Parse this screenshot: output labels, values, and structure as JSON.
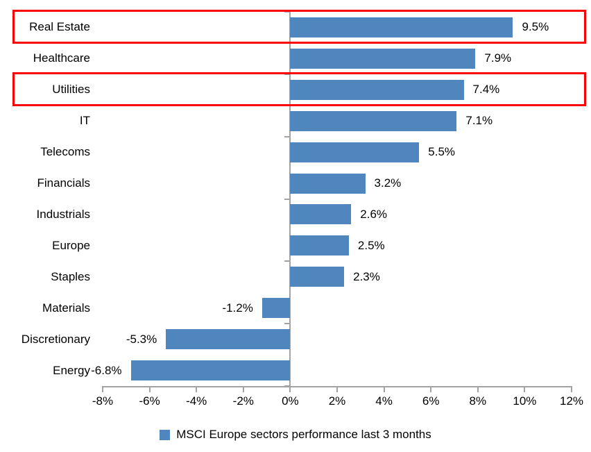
{
  "chart_data": {
    "type": "bar",
    "orientation": "horizontal",
    "title": "",
    "categories": [
      "Real Estate",
      "Healthcare",
      "Utilities",
      "IT",
      "Telecoms",
      "Financials",
      "Industrials",
      "Europe",
      "Staples",
      "Materials",
      "Discretionary",
      "Energy"
    ],
    "values": [
      9.5,
      7.9,
      7.4,
      7.1,
      5.5,
      3.2,
      2.6,
      2.5,
      2.3,
      -1.2,
      -5.3,
      -6.8
    ],
    "value_labels": [
      "9.5%",
      "7.9%",
      "7.4%",
      "7.1%",
      "5.5%",
      "3.2%",
      "2.6%",
      "2.5%",
      "2.3%",
      "-1.2%",
      "-5.3%",
      "-6.8%"
    ],
    "xlim": [
      -8,
      12
    ],
    "xticks": [
      -8,
      -6,
      -4,
      -2,
      0,
      2,
      4,
      6,
      8,
      10,
      12
    ],
    "xtick_labels": [
      "-8%",
      "-6%",
      "-4%",
      "-2%",
      "0%",
      "2%",
      "4%",
      "6%",
      "8%",
      "10%",
      "12%"
    ],
    "grid": false,
    "legend": "MSCI Europe sectors performance last 3 months",
    "legend_position": "bottom-center",
    "bar_color": "#4E86BD",
    "highlight_color": "#FF0000",
    "axis_color": "#A3A3A3",
    "text_color": "#000000",
    "highlighted_categories": [
      "Real Estate",
      "Utilities"
    ]
  }
}
